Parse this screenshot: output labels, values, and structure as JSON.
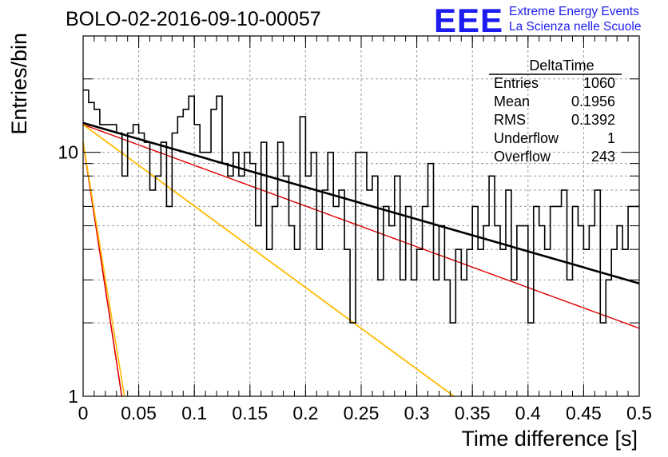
{
  "header": {
    "title": "BOLO-02-2016-09-10-00057",
    "logo_text": "EEE",
    "logo_line1": "Extreme Energy Events",
    "logo_line2": "La Scienza nelle Scuole",
    "logo_color": "#1c1cf0"
  },
  "stats_box": {
    "title": "DeltaTime",
    "rows": [
      {
        "label": "Entries",
        "value": "1060"
      },
      {
        "label": "Mean",
        "value": "0.1956"
      },
      {
        "label": "RMS",
        "value": "0.1392"
      },
      {
        "label": "Underflow",
        "value": "1"
      },
      {
        "label": "Overflow",
        "value": "243"
      }
    ]
  },
  "chart_data": {
    "type": "line",
    "title": "BOLO-02-2016-09-10-00057",
    "xlabel": "Time difference [s]",
    "ylabel": "Entries/bin",
    "xlim": [
      0,
      0.5
    ],
    "ylim": [
      1,
      30
    ],
    "yscale": "log",
    "grid": true,
    "x_ticks": [
      "0",
      "0.05",
      "0.1",
      "0.15",
      "0.2",
      "0.25",
      "0.3",
      "0.35",
      "0.4",
      "0.45",
      "0.5"
    ],
    "y_ticks": [
      "1",
      "10"
    ],
    "histogram": {
      "name": "DeltaTime",
      "bin_width": 0.005,
      "values": [
        18,
        16,
        15,
        13,
        13,
        13,
        12,
        8,
        12,
        13,
        12,
        11,
        7,
        8,
        11,
        6,
        12,
        14,
        15,
        17,
        13,
        10,
        10,
        15,
        17,
        9,
        8,
        10,
        8,
        10,
        9,
        5,
        11,
        4,
        6,
        11,
        8,
        5,
        4,
        14,
        8,
        10,
        4,
        7,
        10,
        6,
        7,
        4,
        2,
        10,
        10,
        7,
        8,
        3,
        6,
        5,
        8,
        3,
        6,
        3,
        4,
        6,
        9,
        3,
        5,
        3,
        2,
        4,
        3,
        4,
        6,
        4,
        5,
        8,
        5,
        4,
        7,
        3,
        5,
        5,
        2,
        6,
        5,
        4,
        6,
        6,
        7,
        3,
        6,
        5,
        4,
        5,
        7,
        2,
        3,
        4,
        5,
        4,
        6,
        6
      ],
      "color": "#000000"
    },
    "series": [
      {
        "type": "exp",
        "a": 13.2,
        "tau": 0.33,
        "color": "#000000",
        "width": 2.6
      },
      {
        "type": "exp",
        "a": 13.0,
        "tau": 0.26,
        "color": "#dd0000",
        "width": 1.4
      },
      {
        "type": "exp",
        "a": 13.0,
        "tau": 0.13,
        "color": "#ffbb00",
        "width": 1.8
      },
      {
        "type": "exp",
        "a": 11.0,
        "tau": 0.0145,
        "color": "#dd0000",
        "width": 1.6
      },
      {
        "type": "exp",
        "a": 11.0,
        "tau": 0.0155,
        "color": "#ffbb00",
        "width": 1.6
      }
    ]
  }
}
